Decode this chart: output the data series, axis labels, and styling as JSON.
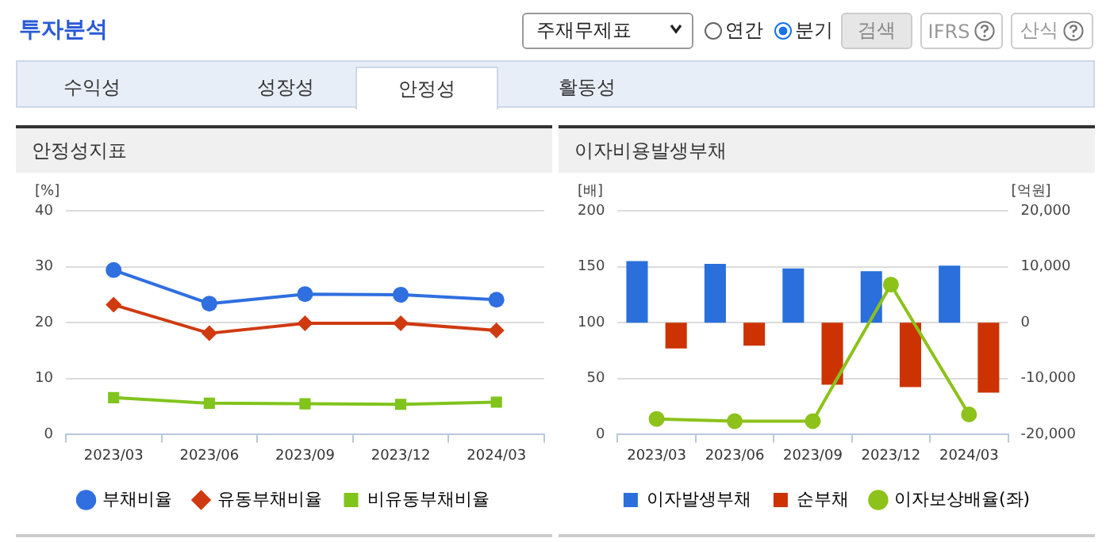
{
  "chart_data": [
    {
      "type": "other",
      "title": "투자분석",
      "annotations": [
        "주재무제표",
        "연간",
        "분기",
        "검색",
        "IFRS",
        "산식",
        "수익성",
        "성장성",
        "안정성",
        "활동성"
      ]
    },
    {
      "type": "line",
      "title": "안정성지표",
      "ylabel": "[%]",
      "categories": [
        "2023/03",
        "2023/06",
        "2023/09",
        "2023/12",
        "2024/03"
      ],
      "ylim": [
        0,
        40
      ],
      "yticks": [
        0,
        10,
        20,
        30,
        40
      ],
      "grid": "y",
      "legend": "bottom",
      "line_style": "solid",
      "series": [
        {
          "name": "부채비율",
          "color": "#2f6fe0",
          "marker": "circle",
          "values": [
            29.4,
            23.4,
            25.1,
            25.0,
            24.1
          ]
        },
        {
          "name": "유동부채비율",
          "color": "#d03a10",
          "marker": "diamond",
          "values": [
            23.2,
            18.1,
            19.9,
            19.9,
            18.6
          ]
        },
        {
          "name": "비유동부채비율",
          "color": "#80c41c",
          "marker": "square",
          "values": [
            6.6,
            5.6,
            5.5,
            5.4,
            5.8
          ]
        }
      ]
    },
    {
      "type": "bar",
      "title": "이자비용발생부채",
      "ylabel": "[배]",
      "y2label": "[억원]",
      "categories": [
        "2023/03",
        "2023/06",
        "2023/09",
        "2023/12",
        "2024/03"
      ],
      "ylim": [
        0,
        200
      ],
      "yticks": [
        0,
        50,
        100,
        150,
        200
      ],
      "y2lim": [
        -20000,
        20000
      ],
      "y2ticks": [
        {
          "value": -20000,
          "label": "-20,000"
        },
        {
          "value": -10000,
          "label": "-10,000"
        },
        0,
        {
          "value": 10000,
          "label": "10,000"
        },
        {
          "value": 20000,
          "label": "20,000"
        }
      ],
      "grid": "y",
      "legend": "bottom",
      "series": [
        {
          "name": "이자발생부채",
          "color": "#2a6fdb",
          "axis": "y2",
          "values": [
            11000,
            10500,
            9700,
            9200,
            10200
          ]
        },
        {
          "name": "순부채",
          "color": "#cc3300",
          "axis": "y2",
          "values": [
            -4600,
            -4100,
            -11100,
            -11500,
            -12500
          ]
        },
        {
          "name": "이자보상배율(좌)",
          "type": "line",
          "color": "#8cc21a",
          "marker": "circle",
          "values": [
            14,
            12,
            12,
            134,
            18
          ]
        }
      ]
    }
  ]
}
